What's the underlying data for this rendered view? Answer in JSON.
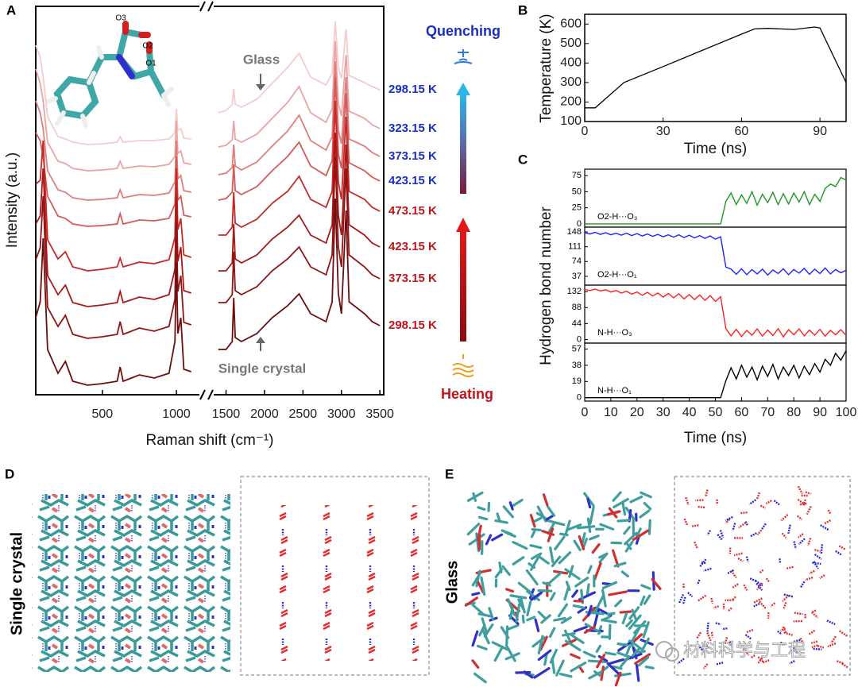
{
  "chart_data": [
    {
      "panel": "A",
      "type": "line",
      "xlabel": "Raman shift (cm⁻¹)",
      "ylabel": "Intensity (a.u.)",
      "x": [
        50,
        80,
        100,
        130,
        200,
        250,
        300,
        400,
        500,
        600,
        620,
        640,
        750,
        850,
        950,
        990,
        1000,
        1010,
        1030,
        1050,
        1100,
        1400,
        1500,
        1580,
        1600,
        1620,
        1700,
        1900,
        2100,
        2300,
        2450,
        2600,
        2800,
        2880,
        2920,
        2960,
        3000,
        3060,
        3100,
        3300,
        3400,
        3500
      ],
      "xlim": [
        50,
        3550
      ],
      "xbreak": [
        1150,
        1350
      ],
      "xticks": [
        500,
        1000,
        1500,
        2000,
        2500,
        3000,
        3500
      ],
      "ylim": [
        0,
        489
      ],
      "series": [
        {
          "name": "298.15 K",
          "color": "#f4cccc",
          "label_color": "#1b2fbf",
          "values": [
            440,
            425,
            400,
            350,
            325,
            322,
            318,
            315,
            316,
            318,
            325,
            318,
            320,
            320,
            322,
            330,
            360,
            333,
            335,
            323,
            322,
            355,
            358,
            365,
            385,
            366,
            362,
            372,
            392,
            412,
            430,
            400,
            390,
            405,
            470,
            412,
            398,
            460,
            402,
            393,
            388,
            384
          ]
        },
        {
          "name": "323.15 K",
          "color": "#eaa4a4",
          "label_color": "#1b2fbf",
          "values": [
            410,
            392,
            370,
            318,
            294,
            291,
            285,
            282,
            283,
            285,
            294,
            285,
            288,
            287,
            290,
            300,
            345,
            304,
            307,
            292,
            290,
            312,
            314,
            321,
            345,
            322,
            318,
            328,
            348,
            368,
            388,
            355,
            343,
            360,
            445,
            367,
            351,
            428,
            357,
            348,
            340,
            335
          ]
        },
        {
          "name": "373.15 K",
          "color": "#e07e7e",
          "label_color": "#1b2fbf",
          "values": [
            370,
            355,
            335,
            282,
            258,
            255,
            248,
            245,
            246,
            248,
            258,
            248,
            252,
            251,
            254,
            268,
            320,
            272,
            276,
            257,
            255,
            277,
            279,
            286,
            315,
            288,
            283,
            293,
            313,
            332,
            352,
            320,
            308,
            325,
            420,
            333,
            316,
            400,
            322,
            313,
            305,
            300
          ]
        },
        {
          "name": "423.15 K",
          "color": "#d65a5a",
          "label_color": "#1b2fbf",
          "values": [
            330,
            320,
            300,
            250,
            225,
            222,
            215,
            212,
            213,
            215,
            228,
            215,
            220,
            219,
            222,
            240,
            300,
            245,
            250,
            226,
            224,
            245,
            247,
            255,
            290,
            257,
            252,
            262,
            282,
            300,
            318,
            288,
            276,
            295,
            400,
            303,
            285,
            380,
            292,
            282,
            274,
            269
          ]
        },
        {
          "name": "473.15 K",
          "color": "#c62828",
          "label_color": "#c0141e",
          "values": [
            265,
            270,
            320,
            195,
            171,
            180,
            161,
            156,
            158,
            161,
            172,
            161,
            167,
            165,
            170,
            198,
            285,
            208,
            222,
            176,
            173,
            201,
            201,
            211,
            255,
            216,
            211,
            221,
            241,
            256,
            275,
            246,
            236,
            256,
            370,
            268,
            246,
            350,
            256,
            246,
            236,
            231
          ]
        },
        {
          "name": "423.15 K",
          "color": "#a81818",
          "label_color": "#c0141e",
          "values": [
            215,
            225,
            285,
            150,
            126,
            138,
            116,
            111,
            113,
            116,
            130,
            116,
            123,
            120,
            126,
            158,
            250,
            168,
            186,
            131,
            128,
            156,
            156,
            166,
            215,
            171,
            166,
            176,
            196,
            211,
            226,
            201,
            191,
            214,
            330,
            226,
            201,
            315,
            214,
            201,
            191,
            186
          ]
        },
        {
          "name": "373.15 K",
          "color": "#8f1414",
          "label_color": "#c0141e",
          "values": [
            170,
            185,
            250,
            110,
            86,
            100,
            76,
            71,
            73,
            76,
            92,
            76,
            84,
            80,
            86,
            120,
            215,
            130,
            150,
            91,
            88,
            116,
            116,
            126,
            180,
            131,
            126,
            136,
            156,
            171,
            186,
            161,
            151,
            176,
            300,
            186,
            161,
            285,
            176,
            161,
            151,
            146
          ]
        },
        {
          "name": "298.15 K",
          "color": "#6e0d0d",
          "label_color": "#c0141e",
          "values": [
            97,
            117,
            197,
            57,
            27,
            42,
            17,
            12,
            14,
            17,
            35,
            17,
            25,
            21,
            27,
            67,
            167,
            77,
            97,
            32,
            29,
            57,
            57,
            67,
            122,
            72,
            67,
            77,
            97,
            112,
            127,
            102,
            92,
            117,
            247,
            127,
            102,
            232,
            117,
            102,
            92,
            87
          ]
        }
      ],
      "annotations": [
        "Glass",
        "Single crystal"
      ],
      "process": [
        "Quenching",
        "Heating"
      ],
      "molecule_labels": [
        "O3",
        "O2",
        "O1"
      ]
    },
    {
      "panel": "B",
      "type": "line",
      "xlabel": "Time (ns)",
      "ylabel": "Temperature (K)",
      "x": [
        0,
        4,
        15,
        30,
        45,
        60,
        65,
        70,
        80,
        88,
        90,
        100
      ],
      "xlim": [
        0,
        100
      ],
      "xticks": [
        0,
        30,
        60,
        90
      ],
      "ylim": [
        100,
        650
      ],
      "yticks": [
        100,
        200,
        300,
        400,
        500,
        600
      ],
      "series": [
        {
          "color": "#000000",
          "values": [
            170,
            170,
            300,
            382,
            465,
            548,
            575,
            578,
            572,
            585,
            580,
            300
          ]
        }
      ]
    },
    {
      "panel": "C",
      "type": "line",
      "xlabel": "Time (ns)",
      "ylabel": "Hydrogen bond number",
      "x": [
        0,
        2,
        4,
        6,
        8,
        10,
        12,
        14,
        16,
        18,
        20,
        22,
        24,
        26,
        28,
        30,
        32,
        34,
        36,
        38,
        40,
        42,
        44,
        46,
        48,
        50,
        52,
        54,
        56,
        58,
        60,
        62,
        64,
        66,
        68,
        70,
        72,
        74,
        76,
        78,
        80,
        82,
        84,
        86,
        88,
        90,
        92,
        94,
        96,
        98,
        100
      ],
      "xlim": [
        0,
        100
      ],
      "xticks": [
        0,
        10,
        20,
        30,
        40,
        50,
        60,
        70,
        80,
        90,
        100
      ],
      "series": [
        {
          "name": "O2-H···O₃",
          "color": "#1e9a1e",
          "ylim": [
            -5,
            85
          ],
          "yticks": [
            0,
            25,
            50,
            75
          ],
          "values": [
            0,
            0,
            0,
            0,
            0,
            0,
            0,
            0,
            0,
            0,
            0,
            0,
            0,
            0,
            0,
            0,
            0,
            0,
            0,
            0,
            0,
            0,
            0,
            0,
            0,
            0,
            0,
            35,
            48,
            30,
            45,
            32,
            50,
            29,
            46,
            33,
            49,
            30,
            47,
            31,
            48,
            34,
            50,
            30,
            46,
            35,
            55,
            62,
            58,
            72,
            68
          ]
        },
        {
          "name": "O2-H···O₁",
          "color": "#1f1fff",
          "ylim": [
            15,
            160
          ],
          "yticks": [
            37,
            74,
            111,
            148
          ],
          "values": [
            146,
            143,
            147,
            142,
            146,
            141,
            145,
            140,
            145,
            139,
            144,
            138,
            143,
            137,
            142,
            136,
            141,
            135,
            141,
            134,
            140,
            133,
            139,
            132,
            138,
            130,
            136,
            60,
            55,
            42,
            56,
            41,
            54,
            43,
            55,
            40,
            53,
            44,
            56,
            41,
            54,
            45,
            57,
            42,
            55,
            44,
            58,
            43,
            54,
            46,
            52
          ]
        },
        {
          "name": "N-H···O₃",
          "color": "#ff2020",
          "ylim": [
            -10,
            150
          ],
          "yticks": [
            0,
            44,
            88,
            132
          ],
          "values": [
            138,
            135,
            139,
            134,
            137,
            131,
            135,
            128,
            133,
            125,
            131,
            122,
            130,
            120,
            128,
            117,
            127,
            115,
            126,
            112,
            124,
            110,
            123,
            108,
            121,
            105,
            118,
            30,
            10,
            28,
            8,
            25,
            12,
            29,
            9,
            26,
            11,
            30,
            7,
            27,
            13,
            29,
            10,
            26,
            12,
            28,
            9,
            25,
            13,
            27,
            11
          ]
        },
        {
          "name": "N-H···O₁",
          "color": "#000000",
          "ylim": [
            -4,
            64
          ],
          "yticks": [
            0,
            19,
            38,
            57
          ],
          "values": [
            0,
            0,
            0,
            0,
            0,
            0,
            0,
            0,
            0,
            0,
            0,
            0,
            0,
            0,
            0,
            0,
            0,
            0,
            0,
            0,
            0,
            0,
            0,
            0,
            0,
            0,
            0,
            20,
            35,
            22,
            38,
            24,
            36,
            21,
            37,
            25,
            39,
            22,
            36,
            26,
            38,
            23,
            37,
            27,
            40,
            30,
            45,
            38,
            52,
            44,
            55
          ]
        }
      ]
    }
  ],
  "figures": [
    {
      "panel": "D",
      "title": "Single crystal"
    },
    {
      "panel": "E",
      "title": "Glass"
    }
  ],
  "watermark": "材料科学与工程"
}
